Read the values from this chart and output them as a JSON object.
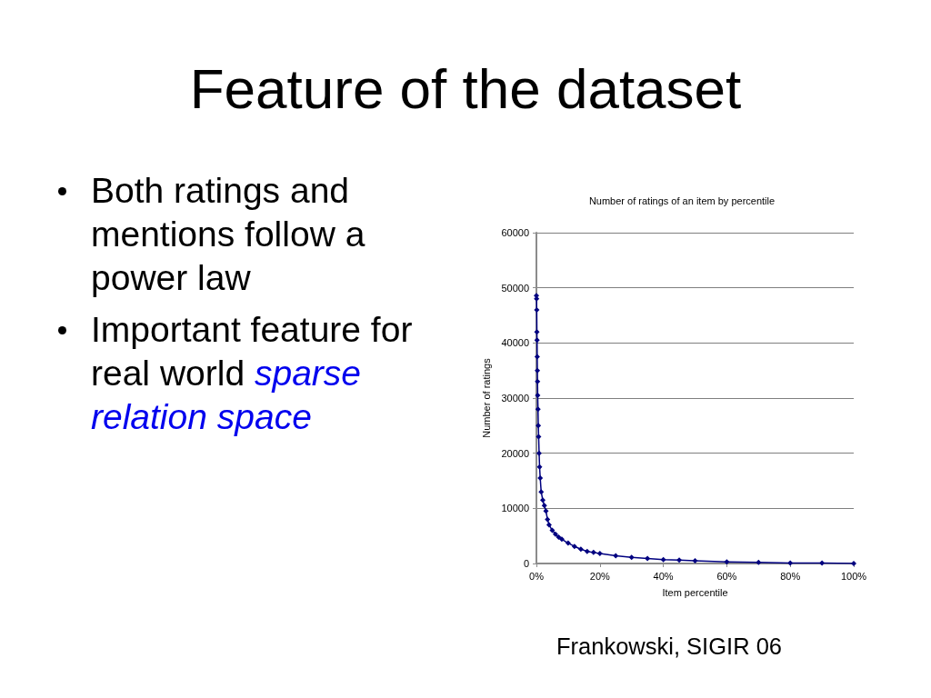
{
  "chart_data": {
    "type": "line",
    "title": "Feature of the dataset",
    "subtitle": "Number of ratings of an item by percentile",
    "xlabel": "Item percentile",
    "ylabel": "Number of ratings",
    "annotations": [
      "Both ratings and mentions follow a power law",
      "Important feature for real world sparse relation space",
      "Frankowski, SIGIR 06"
    ],
    "x": [
      0,
      0.05,
      0.1,
      0.15,
      0.2,
      0.25,
      0.3,
      0.35,
      0.4,
      0.5,
      0.6,
      0.7,
      0.85,
      1,
      1.2,
      1.5,
      2,
      2.5,
      3,
      3.5,
      4,
      5,
      6,
      7,
      8,
      10,
      12,
      14,
      16,
      18,
      20,
      25,
      30,
      35,
      40,
      45,
      50,
      60,
      70,
      80,
      90,
      100
    ],
    "values": [
      48600,
      48000,
      46000,
      42000,
      40500,
      37500,
      35000,
      33000,
      30500,
      28000,
      25000,
      23000,
      20000,
      17500,
      15500,
      13000,
      11500,
      10500,
      9500,
      8000,
      7000,
      6000,
      5300,
      4800,
      4400,
      3700,
      3100,
      2600,
      2200,
      2000,
      1800,
      1400,
      1100,
      900,
      700,
      600,
      500,
      300,
      200,
      100,
      100,
      0
    ],
    "color": "#000080",
    "xlim": [
      0,
      100
    ],
    "xticks": [
      {
        "value": 0,
        "label": "0%"
      },
      {
        "value": 20,
        "label": "20%"
      },
      {
        "value": 40,
        "label": "40%"
      },
      {
        "value": 60,
        "label": "60%"
      },
      {
        "value": 80,
        "label": "80%"
      },
      {
        "value": 100,
        "label": "100%"
      }
    ],
    "ylim": [
      0,
      60000
    ],
    "yticks": [
      0,
      10000,
      20000,
      30000,
      40000,
      50000,
      60000
    ],
    "grid": "y",
    "marker": "diamond",
    "line_style": "solid"
  }
}
